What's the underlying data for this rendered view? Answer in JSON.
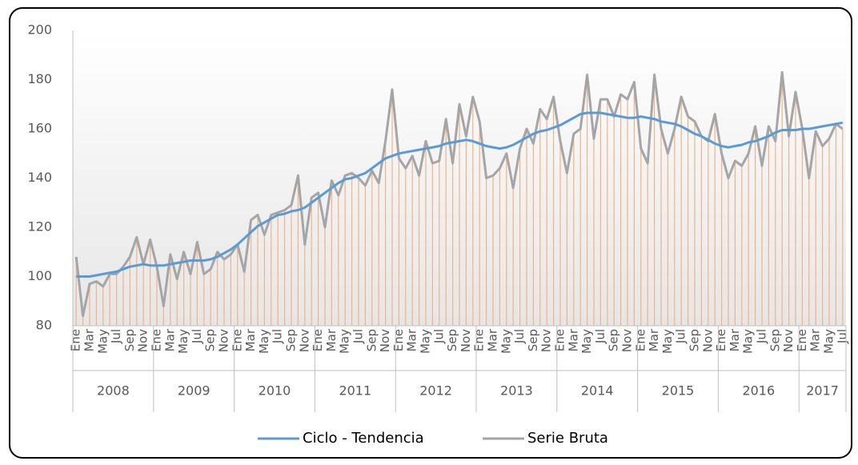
{
  "chart_data": {
    "type": "line",
    "categories": [
      "Ene",
      null,
      "Mar",
      null,
      "May",
      null,
      "Jul",
      null,
      "Sep",
      null,
      "Nov",
      null,
      "Ene",
      null,
      "Mar",
      null,
      "May",
      null,
      "Jul",
      null,
      "Sep",
      null,
      "Nov",
      null,
      "Ene",
      null,
      "Mar",
      null,
      "May",
      null,
      "Jul",
      null,
      "Sep",
      null,
      "Nov",
      null,
      "Ene",
      null,
      "Mar",
      null,
      "May",
      null,
      "Jul",
      null,
      "Sep",
      null,
      "Nov",
      null,
      "Ene",
      null,
      "Mar",
      null,
      "May",
      null,
      "Jul",
      null,
      "Sep",
      null,
      "Nov",
      null,
      "Ene",
      null,
      "Mar",
      null,
      "May",
      null,
      "Jul",
      null,
      "Sep",
      null,
      "Nov",
      null,
      "Ene",
      null,
      "Mar",
      null,
      "May",
      null,
      "Jul",
      null,
      "Sep",
      null,
      "Nov",
      null,
      "Ene",
      null,
      "Mar",
      null,
      "May",
      null,
      "Jul",
      null,
      "Sep",
      null,
      "Nov",
      null,
      "Ene",
      null,
      "Mar",
      null,
      "May",
      null,
      "Jul",
      null,
      "Sep",
      null,
      "Nov",
      null,
      "Ene",
      null,
      "Mar",
      null,
      "May",
      null,
      "Jul"
    ],
    "years": [
      "2008",
      "2009",
      "2010",
      "2011",
      "2012",
      "2013",
      "2014",
      "2015",
      "2016",
      "2017"
    ],
    "series": [
      {
        "name": "Ciclo - Tendencia",
        "color": "#5b9bd5",
        "values": [
          100,
          100,
          100,
          100.5,
          101,
          101.5,
          102,
          103,
          104,
          104.5,
          105,
          104.5,
          104.5,
          104.5,
          105,
          105.5,
          106,
          106.5,
          106.5,
          106.5,
          107,
          108,
          109.5,
          111,
          113,
          115.5,
          118,
          120.5,
          122,
          123.5,
          125,
          125.5,
          126.5,
          127,
          128,
          130,
          132,
          134,
          136,
          138,
          139.5,
          140,
          141,
          142,
          144,
          146,
          148,
          149,
          150,
          150.5,
          151,
          151.5,
          152,
          152.5,
          153,
          154,
          154.5,
          155,
          155.5,
          155,
          154,
          153,
          152.5,
          152,
          152.5,
          153.5,
          155,
          156.5,
          158,
          159,
          159.5,
          160.5,
          161.5,
          163,
          164.5,
          166,
          166.5,
          166.5,
          166.5,
          166,
          165.5,
          165,
          164.5,
          164.5,
          165,
          164.5,
          164,
          163,
          162.5,
          162,
          161,
          159.5,
          158,
          157,
          155.5,
          154,
          153,
          152.5,
          153,
          153.5,
          154.5,
          155,
          156,
          157,
          158.5,
          159.5,
          159.5,
          159.5,
          160,
          160,
          160.5,
          161,
          161.5,
          162,
          162.5
        ]
      },
      {
        "name": "Serie Bruta",
        "color": "#a5a5a5",
        "values": [
          108,
          84,
          97,
          98,
          96,
          101,
          101,
          104,
          108,
          116,
          105,
          115,
          104,
          88,
          109,
          99,
          110,
          101,
          114,
          101,
          103,
          110,
          107,
          109,
          113,
          102,
          123,
          125,
          117,
          125,
          126,
          127,
          129,
          141,
          113,
          132,
          134,
          120,
          139,
          133,
          141,
          142,
          140,
          137,
          143,
          138,
          155,
          176,
          148,
          144,
          149,
          141,
          155,
          146,
          147,
          164,
          146,
          170,
          157,
          173,
          163,
          140,
          141,
          144,
          150,
          136,
          152,
          160,
          154,
          168,
          164,
          173,
          155,
          142,
          158,
          160,
          182,
          156,
          172,
          172,
          165,
          174,
          172,
          179,
          152,
          146,
          182,
          160,
          150,
          160,
          173,
          165,
          163,
          157,
          155,
          166,
          150,
          140,
          147,
          145,
          150,
          161,
          145,
          161,
          155,
          183,
          157,
          175,
          160,
          140,
          159,
          153,
          156,
          162,
          160
        ]
      }
    ],
    "drop_line_color": "#f4b183",
    "ylim": [
      80,
      200
    ],
    "yticks": [
      80,
      100,
      120,
      140,
      160,
      180,
      200
    ],
    "grid": false,
    "legend": "bottom"
  }
}
